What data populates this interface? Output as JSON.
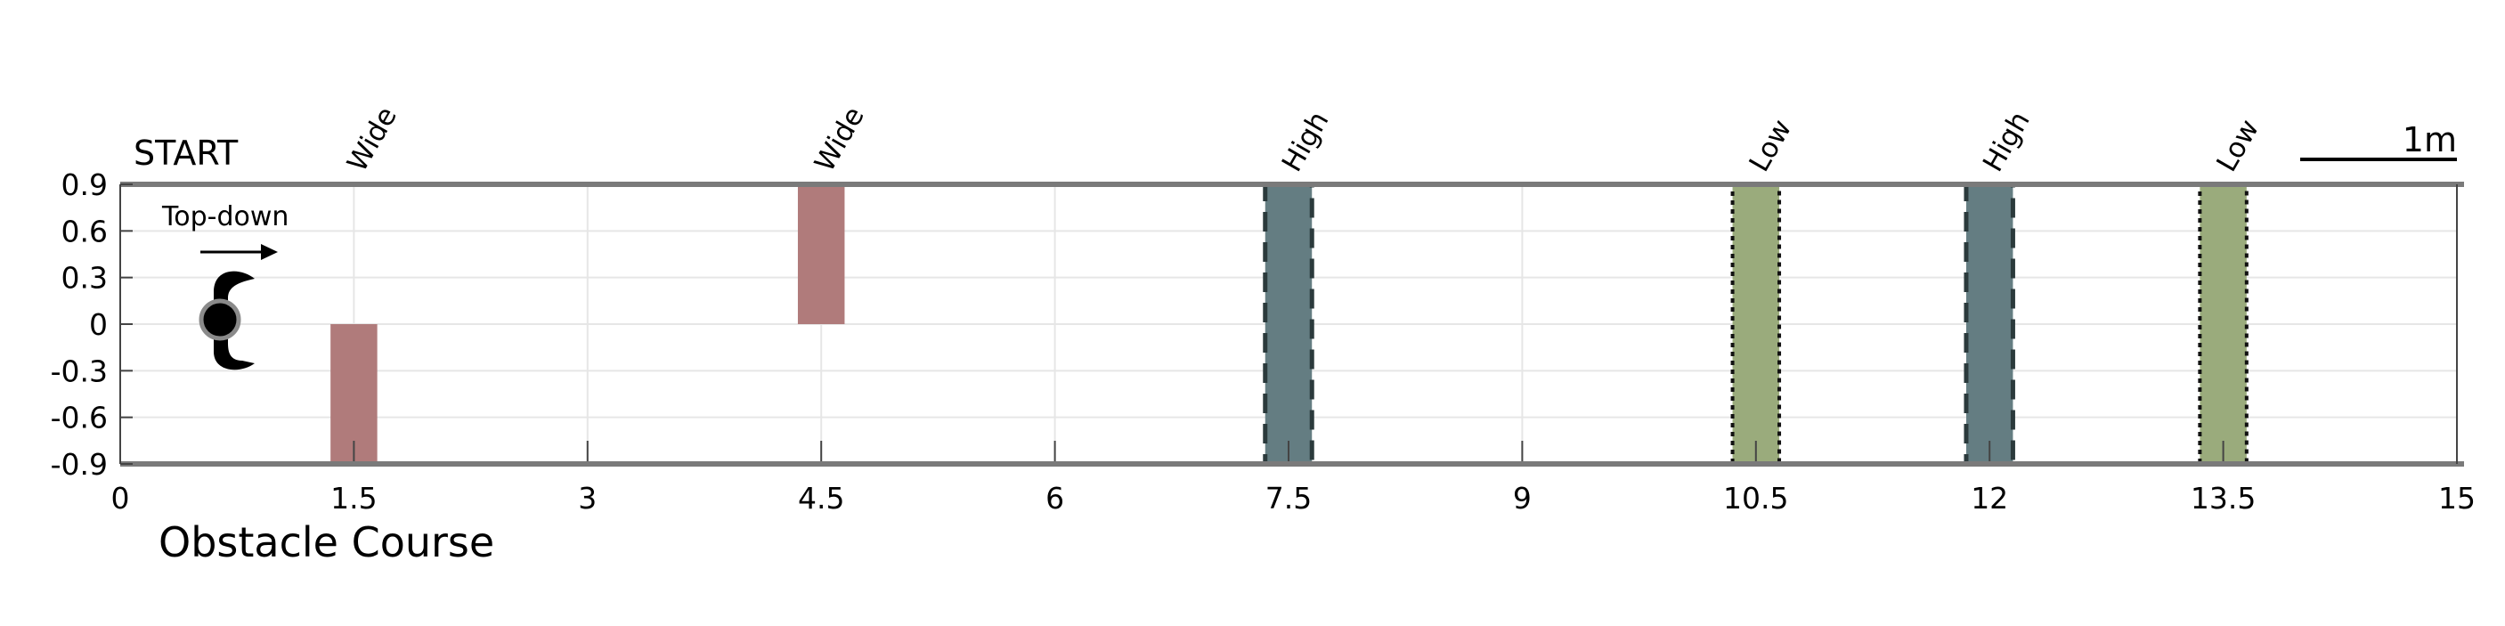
{
  "chart_data": {
    "type": "bar",
    "title": "",
    "xlabel": "Obstacle Course",
    "ylabel": "",
    "xlim": [
      0,
      15
    ],
    "ylim": [
      -0.9,
      0.9
    ],
    "x_ticks": [
      "0",
      "1.5",
      "3",
      "4.5",
      "6",
      "7.5",
      "9",
      "10.5",
      "12",
      "13.5",
      "15"
    ],
    "y_ticks": [
      "0.9",
      "0.6",
      "0.3",
      "0",
      "-0.3",
      "-0.6",
      "-0.9"
    ],
    "grid": true,
    "start_label": "START",
    "robot_note": "Top-down",
    "scale_bar_label": "1m",
    "obstacles": [
      {
        "label": "Wide",
        "x": 1.5,
        "width": 0.3,
        "y0": -0.9,
        "y1": 0.0,
        "color": "#b07b7b",
        "border": "none"
      },
      {
        "label": "Wide",
        "x": 4.5,
        "width": 0.3,
        "y0": 0.0,
        "y1": 0.9,
        "color": "#b07b7b",
        "border": "none"
      },
      {
        "label": "High",
        "x": 7.5,
        "width": 0.3,
        "y0": -0.9,
        "y1": 0.9,
        "color": "#647d82",
        "border": "dashed"
      },
      {
        "label": "Low",
        "x": 10.5,
        "width": 0.3,
        "y0": -0.9,
        "y1": 0.9,
        "color": "#9aab7c",
        "border": "dotted"
      },
      {
        "label": "High",
        "x": 12.0,
        "width": 0.3,
        "y0": -0.9,
        "y1": 0.9,
        "color": "#647d82",
        "border": "dashed"
      },
      {
        "label": "Low",
        "x": 13.5,
        "width": 0.3,
        "y0": -0.9,
        "y1": 0.9,
        "color": "#9aab7c",
        "border": "dotted"
      }
    ]
  }
}
